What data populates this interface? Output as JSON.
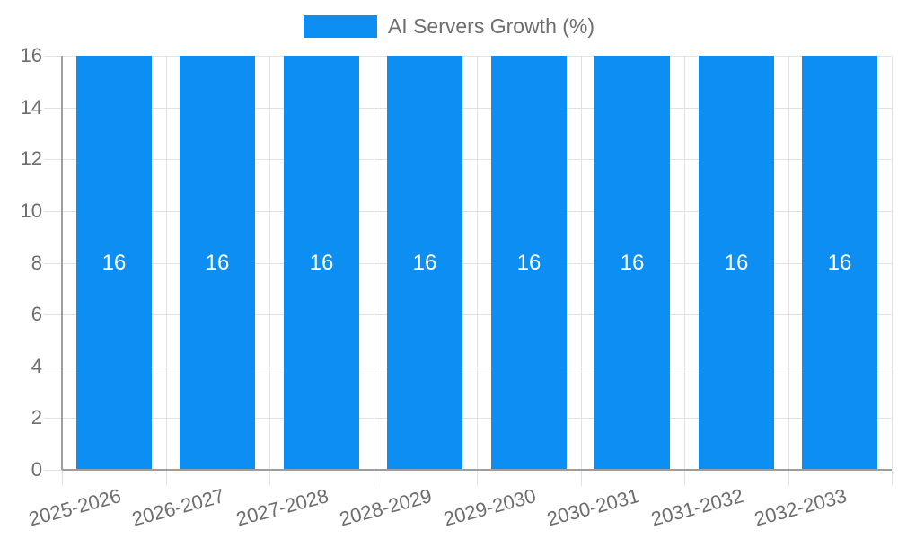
{
  "chart_data": {
    "type": "bar",
    "title": "",
    "legend": {
      "position": "top",
      "label": "AI Servers Growth (%)"
    },
    "categories": [
      "2025-2026",
      "2026-2027",
      "2027-2028",
      "2028-2029",
      "2029-2030",
      "2030-2031",
      "2031-2032",
      "2032-2033"
    ],
    "series": [
      {
        "name": "AI Servers Growth (%)",
        "values": [
          16,
          16,
          16,
          16,
          16,
          16,
          16,
          16
        ]
      }
    ],
    "bar_value_labels": [
      "16",
      "16",
      "16",
      "16",
      "16",
      "16",
      "16",
      "16"
    ],
    "xlabel": "",
    "ylabel": "",
    "ylim": [
      0,
      16
    ],
    "yticks": [
      0,
      2,
      4,
      6,
      8,
      10,
      12,
      14,
      16
    ],
    "grid": true,
    "colors": {
      "bar": "#0D8EF2",
      "bar_label": "#FFFFFF",
      "axis_text": "#6E6E6E",
      "grid_line": "#E2E2E2",
      "axis_line": "#9E9E9E",
      "background": "#FFFFFF"
    }
  }
}
